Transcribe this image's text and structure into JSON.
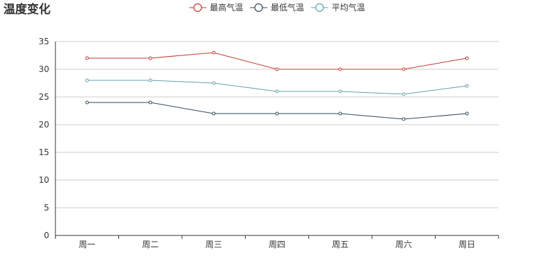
{
  "chart_data": {
    "type": "line",
    "title": "温度变化",
    "categories": [
      "周一",
      "周二",
      "周三",
      "周四",
      "周五",
      "周六",
      "周日"
    ],
    "series": [
      {
        "name": "最高气温",
        "color": "#c23531",
        "values": [
          32,
          32,
          33,
          30,
          30,
          30,
          32
        ]
      },
      {
        "name": "最低气温",
        "color": "#2f4554",
        "values": [
          24,
          24,
          22,
          22,
          22,
          21,
          22
        ]
      },
      {
        "name": "平均气温",
        "color": "#61a0a8",
        "values": [
          28,
          28,
          27.5,
          26,
          26,
          25.5,
          27
        ]
      }
    ],
    "ylim": [
      0,
      35
    ],
    "yticks": [
      0,
      5,
      10,
      15,
      20,
      25,
      30,
      35
    ],
    "xlabel": "",
    "ylabel": "",
    "grid": true,
    "legend_position": "top-center"
  }
}
